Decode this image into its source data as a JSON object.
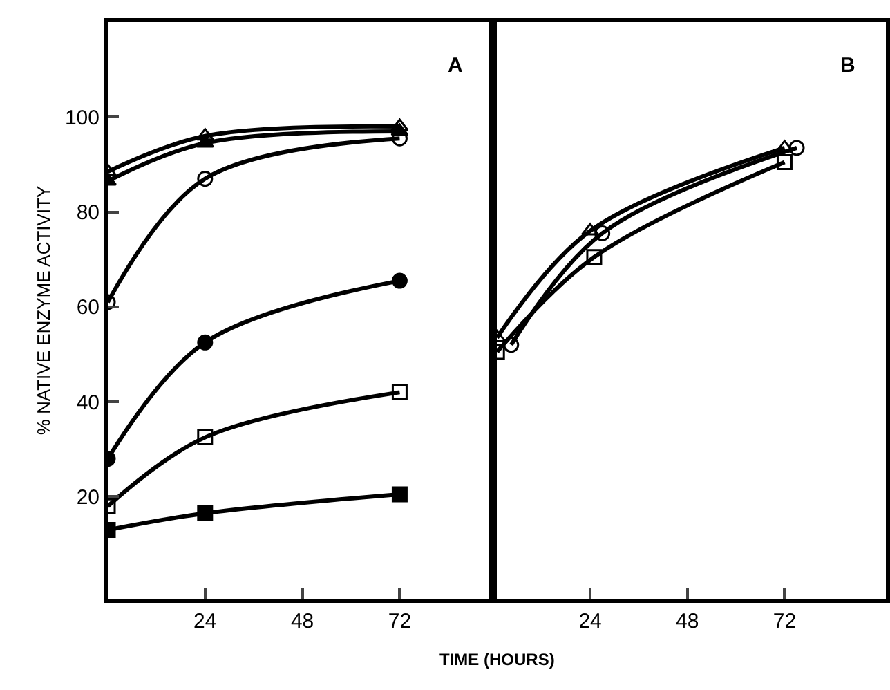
{
  "chart_data": [
    {
      "type": "line",
      "xlabel": "TIME (HOURS)",
      "ylabel": "% NATIVE ENZYME ACTIVITY",
      "annotations": [
        "A"
      ],
      "xlim": [
        0,
        95
      ],
      "ylim": [
        -1.5,
        120
      ],
      "xticks": [
        24,
        48,
        72
      ],
      "yticks": [
        20,
        40,
        60,
        80,
        100
      ],
      "line_style": "solid",
      "series": [
        {
          "color": "#000000",
          "marker": "triangle-open",
          "x": [
            0,
            24,
            72
          ],
          "values": [
            88.5,
            96,
            98
          ]
        },
        {
          "color": "#000000",
          "marker": "triangle",
          "x": [
            0,
            24,
            72
          ],
          "values": [
            86.5,
            94.5,
            97
          ]
        },
        {
          "color": "#000000",
          "marker": "circle-open",
          "x": [
            0,
            24,
            72
          ],
          "values": [
            61,
            87,
            95.5
          ]
        },
        {
          "color": "#000000",
          "marker": "circle",
          "x": [
            0,
            24,
            72
          ],
          "values": [
            28,
            52.5,
            65.5
          ]
        },
        {
          "color": "#000000",
          "marker": "square-open",
          "x": [
            0,
            24,
            72
          ],
          "values": [
            18,
            32.5,
            42
          ]
        },
        {
          "color": "#000000",
          "marker": "square",
          "x": [
            0,
            24,
            72
          ],
          "values": [
            13,
            16.5,
            20.5
          ]
        }
      ]
    },
    {
      "type": "line",
      "annotations": [
        "B"
      ],
      "xlim": [
        0,
        97
      ],
      "ylim": [
        -1.5,
        120
      ],
      "xticks": [
        24,
        48,
        72
      ],
      "tick_labels": "x",
      "line_style": "solid",
      "series": [
        {
          "color": "#000000",
          "marker": "triangle-open",
          "x": [
            1,
            24,
            72
          ],
          "values": [
            53.5,
            76,
            93.5
          ]
        },
        {
          "color": "#000000",
          "marker": "circle-open",
          "x": [
            4.5,
            27,
            75
          ],
          "values": [
            52,
            75.5,
            93.5
          ]
        },
        {
          "color": "#000000",
          "marker": "square-open",
          "x": [
            1,
            25,
            72
          ],
          "values": [
            50.5,
            70.5,
            90.5
          ]
        }
      ]
    }
  ]
}
